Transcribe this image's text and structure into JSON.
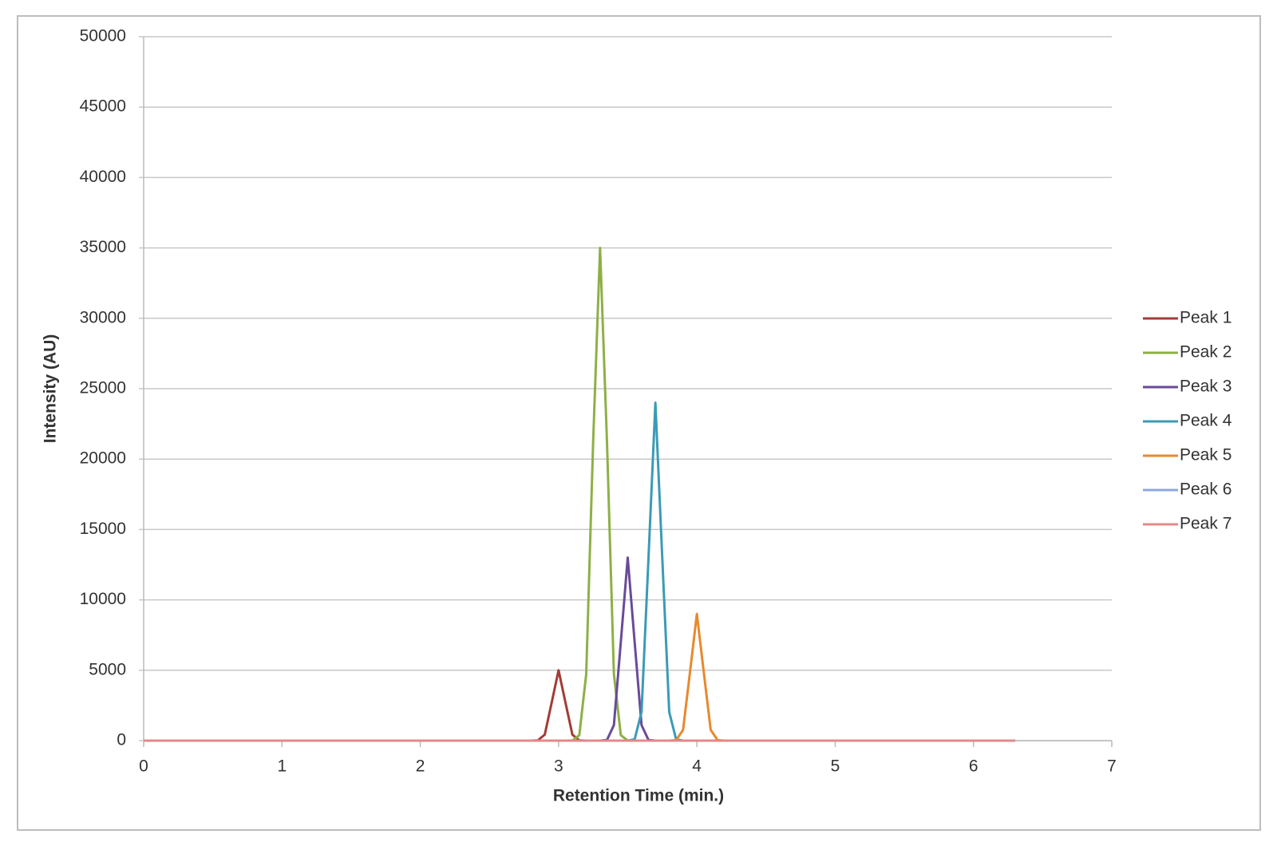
{
  "chart_data": {
    "type": "line",
    "xlabel": "Retention Time (min.)",
    "ylabel": "Intensity (AU)",
    "x": [
      0,
      2.8,
      2.85,
      2.9,
      2.95,
      3.0,
      3.05,
      3.1,
      3.15,
      3.2,
      3.25,
      3.3,
      3.35,
      3.4,
      3.45,
      3.5,
      3.55,
      3.6,
      3.65,
      3.7,
      3.75,
      3.8,
      3.85,
      3.9,
      3.95,
      4.0,
      4.05,
      4.1,
      4.15,
      4.2,
      6.3
    ],
    "series": [
      {
        "name": "Peak 1",
        "color": "#a33b36",
        "values": [
          0,
          0,
          20,
          424,
          2695,
          5000,
          2695,
          424,
          20,
          0,
          0,
          0,
          0,
          0,
          0,
          0,
          0,
          0,
          0,
          0,
          0,
          0,
          0,
          0,
          0,
          0,
          0,
          0,
          0,
          0,
          0
        ]
      },
      {
        "name": "Peak 2",
        "color": "#8db046",
        "values": [
          0,
          0,
          0,
          0,
          0,
          0,
          0,
          11,
          389,
          4736,
          21228,
          35000,
          21228,
          4736,
          389,
          11,
          0,
          0,
          0,
          0,
          0,
          0,
          0,
          0,
          0,
          0,
          0,
          0,
          0,
          0,
          0
        ]
      },
      {
        "name": "Peak 3",
        "color": "#6a4a9a",
        "values": [
          0,
          0,
          0,
          0,
          0,
          0,
          0,
          0,
          0,
          0,
          0,
          0,
          51,
          1101,
          7007,
          13000,
          7007,
          1101,
          51,
          0,
          0,
          0,
          0,
          0,
          0,
          0,
          0,
          0,
          0,
          0,
          0
        ]
      },
      {
        "name": "Peak 4",
        "color": "#3a9bb5",
        "values": [
          0,
          0,
          0,
          0,
          0,
          0,
          0,
          0,
          0,
          0,
          0,
          0,
          0,
          0,
          0,
          0,
          94,
          2033,
          12936,
          24000,
          12936,
          2033,
          94,
          0,
          0,
          0,
          0,
          0,
          0,
          0,
          0
        ]
      },
      {
        "name": "Peak 5",
        "color": "#e8892c",
        "values": [
          0,
          0,
          0,
          0,
          0,
          0,
          0,
          0,
          0,
          0,
          0,
          0,
          0,
          0,
          0,
          0,
          0,
          0,
          0,
          0,
          0,
          0,
          35,
          762,
          4851,
          9000,
          4851,
          762,
          35,
          0,
          0
        ]
      },
      {
        "name": "Peak 6",
        "color": "#8fa8e0",
        "values": [
          0,
          0,
          0,
          0,
          0,
          0,
          0,
          0,
          0,
          0,
          0,
          0,
          0,
          0,
          0,
          0,
          0,
          0,
          0,
          0,
          0,
          0,
          0,
          0,
          0,
          0,
          0,
          0,
          0,
          0,
          0
        ]
      },
      {
        "name": "Peak 7",
        "color": "#e08a8a",
        "values": [
          0,
          0,
          0,
          0,
          0,
          0,
          0,
          0,
          0,
          0,
          0,
          0,
          0,
          0,
          0,
          0,
          0,
          0,
          0,
          0,
          0,
          0,
          0,
          0,
          0,
          0,
          0,
          0,
          0,
          0,
          0
        ]
      }
    ],
    "xlim": [
      0,
      7
    ],
    "xticks": [
      0,
      1,
      2,
      3,
      4,
      5,
      6,
      7
    ],
    "ylim": [
      0,
      50000
    ],
    "yticks": [
      0,
      5000,
      10000,
      15000,
      20000,
      25000,
      30000,
      35000,
      40000,
      45000,
      50000
    ],
    "grid": true,
    "legend": "right"
  }
}
